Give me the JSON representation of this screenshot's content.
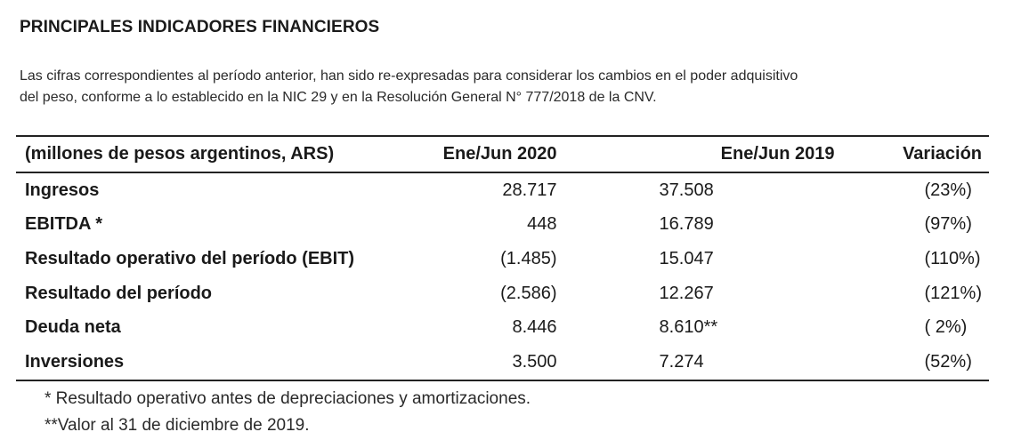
{
  "title": "PRINCIPALES INDICADORES FINANCIEROS",
  "intro": {
    "line1": "Las cifras correspondientes al período anterior, han sido re-expresadas para considerar los cambios en el poder adquisitivo",
    "line2": "del peso, conforme a lo establecido en la NIC 29 y en la Resolución General N° 777/2018 de la CNV."
  },
  "table": {
    "headers": {
      "label": "(millones de pesos argentinos, ARS)",
      "col2020": "Ene/Jun 2020",
      "col2019": "Ene/Jun 2019",
      "variation": "Variación"
    },
    "rows": [
      {
        "label": "Ingresos",
        "v2020": "28.717",
        "v2019": "37.508",
        "variation": "(23%)"
      },
      {
        "label": "EBITDA *",
        "v2020": "448",
        "v2019": "16.789",
        "variation": "(97%)"
      },
      {
        "label": "Resultado operativo del período (EBIT)",
        "v2020": "(1.485)",
        "v2019": "15.047",
        "variation": "(110%)"
      },
      {
        "label": "Resultado del período",
        "v2020": "(2.586)",
        "v2019": "12.267",
        "variation": "(121%)"
      },
      {
        "label": "Deuda neta",
        "v2020": "8.446",
        "v2019": "8.610**",
        "variation": "( 2%)"
      },
      {
        "label": "Inversiones",
        "v2020": "3.500",
        "v2019": "7.274",
        "variation": "(52%)"
      }
    ]
  },
  "footnotes": {
    "note1": "* Resultado operativo antes de depreciaciones y amortizaciones.",
    "note2": "**Valor al 31 de diciembre de 2019."
  }
}
